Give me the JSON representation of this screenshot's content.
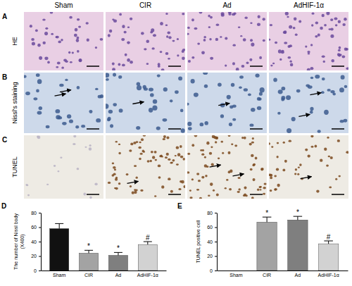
{
  "figure": {
    "columns": [
      "Sham",
      "CIR",
      "Ad",
      "AdHIF-1α"
    ],
    "rows": [
      {
        "panel": "A",
        "label": "HE"
      },
      {
        "panel": "B",
        "label": "Nissl's staining"
      },
      {
        "panel": "C",
        "label": "TUNEL"
      }
    ]
  },
  "chart_data": [
    {
      "panel": "D",
      "type": "bar",
      "categories": [
        "Sham",
        "CIR",
        "Ad",
        "AdHIF-1α"
      ],
      "values": [
        58,
        24,
        21,
        36
      ],
      "errors": [
        7,
        4,
        4,
        4
      ],
      "colors": [
        "#111111",
        "#a3a3a3",
        "#7f7f7f",
        "#d2d2d2"
      ],
      "annotations": [
        null,
        "*",
        "*",
        "#"
      ],
      "ylabel": [
        "The number of Nissl body",
        "(X400)"
      ],
      "ylim": [
        0,
        80
      ],
      "yticks": [
        0,
        20,
        40,
        60,
        80
      ]
    },
    {
      "panel": "E",
      "type": "bar",
      "categories": [
        "Sham",
        "CIR",
        "Ad",
        "AdHIF-1α"
      ],
      "values": [
        0,
        67,
        70,
        37
      ],
      "errors": [
        0,
        7,
        5,
        4
      ],
      "colors": [
        "#111111",
        "#a3a3a3",
        "#7f7f7f",
        "#d2d2d2"
      ],
      "annotations": [
        null,
        "*",
        "*",
        "#"
      ],
      "ylabel": "TUNEL positive cell",
      "ylim": [
        0,
        80
      ],
      "yticks": [
        0,
        20,
        40,
        60,
        80
      ]
    }
  ]
}
